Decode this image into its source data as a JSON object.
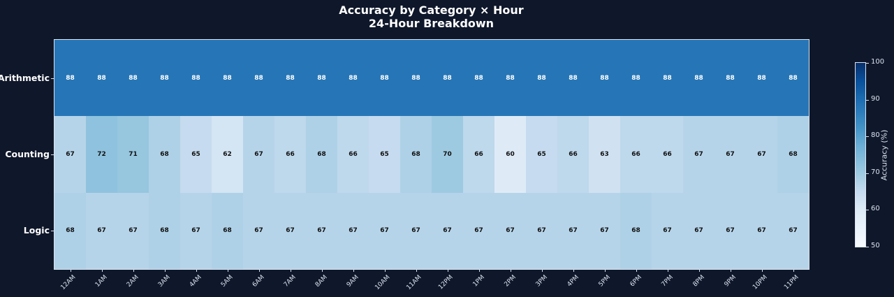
{
  "chart_data": {
    "type": "heatmap",
    "title": "Accuracy by Category × Hour",
    "subtitle": "24-Hour Breakdown",
    "x": [
      "12AM",
      "1AM",
      "2AM",
      "3AM",
      "4AM",
      "5AM",
      "6AM",
      "7AM",
      "8AM",
      "9AM",
      "10AM",
      "11AM",
      "12PM",
      "1PM",
      "2PM",
      "3PM",
      "4PM",
      "5PM",
      "6PM",
      "7PM",
      "8PM",
      "9PM",
      "10PM",
      "11PM"
    ],
    "y": [
      "Arithmetic",
      "Counting",
      "Logic"
    ],
    "values": [
      [
        88,
        88,
        88,
        88,
        88,
        88,
        88,
        88,
        88,
        88,
        88,
        88,
        88,
        88,
        88,
        88,
        88,
        88,
        88,
        88,
        88,
        88,
        88,
        88
      ],
      [
        67,
        72,
        71,
        68,
        65,
        62,
        67,
        66,
        68,
        66,
        65,
        68,
        70,
        66,
        60,
        65,
        66,
        63,
        66,
        66,
        67,
        67,
        67,
        68
      ],
      [
        68,
        67,
        67,
        68,
        67,
        68,
        67,
        67,
        67,
        67,
        67,
        67,
        67,
        67,
        67,
        67,
        67,
        67,
        68,
        67,
        67,
        67,
        67,
        67
      ]
    ],
    "colorbar": {
      "label": "Accuracy (%)",
      "range": [
        50,
        100
      ],
      "ticks": [
        "50",
        "60",
        "70",
        "80",
        "90",
        "100"
      ],
      "colormap": "Blues"
    },
    "xlabel": "",
    "ylabel": "",
    "grid": false
  },
  "colors": {
    "background": "#0f172a",
    "text": "#ffffff"
  }
}
